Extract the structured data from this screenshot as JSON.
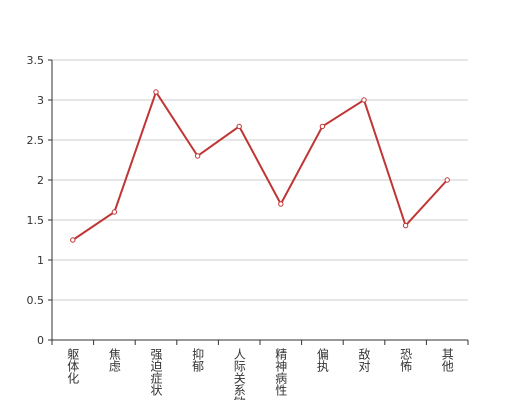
{
  "chart_data": {
    "type": "line",
    "categories": [
      "躯体化",
      "焦虑",
      "强迫症状",
      "抑郁",
      "人际关系敏感",
      "精神病性",
      "偏执",
      "敌对",
      "恐怖",
      "其他"
    ],
    "values": [
      1.25,
      1.6,
      3.1,
      2.3,
      2.67,
      1.7,
      2.67,
      3.0,
      1.43,
      2.0
    ],
    "color": "#c03535",
    "ylim": [
      0,
      3.5
    ],
    "yticks": [
      0,
      0.5,
      1,
      1.5,
      2,
      2.5,
      3,
      3.5
    ],
    "grid": true
  }
}
